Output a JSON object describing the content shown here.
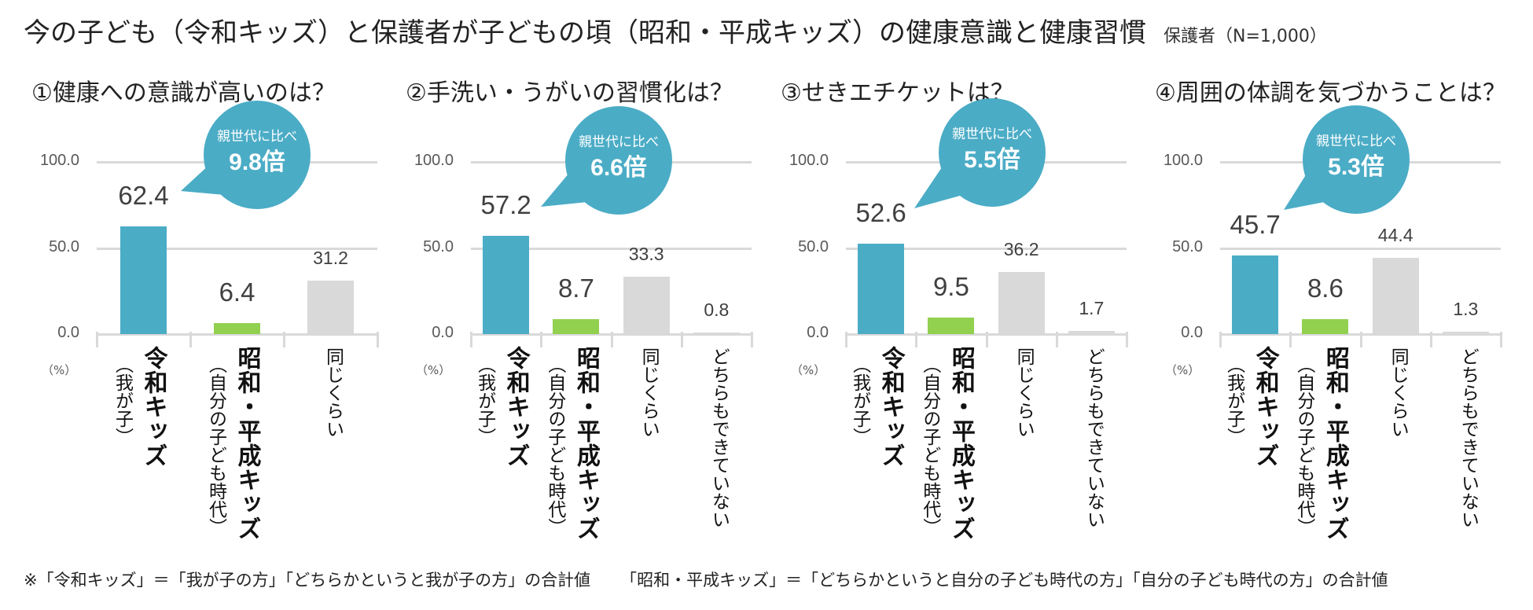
{
  "title": "今の子ども（令和キッズ）と保護者が子どもの頃（昭和・平成キッズ）の健康意識と健康習慣",
  "sample_note": "保護者（N=1,000）",
  "colors": {
    "reiwa": "#4bacc6",
    "showa": "#92d050",
    "other": "#d9d9d9",
    "bubble": "#4bacc6",
    "grid": "#d9d9d9"
  },
  "footnote": {
    "part1": "※「令和キッズ」＝「我が子の方」「どちらかというと我が子の方」の合計値",
    "part2": "「昭和・平成キッズ」＝「どちらかというと自分の子ども時代の方」「自分の子ども時代の方」の合計値"
  },
  "chart_data": [
    {
      "type": "bar",
      "title": "①健康への意識が高いのは？",
      "unit_label": "（%）",
      "ylim": [
        0,
        100
      ],
      "yticks": [
        "100.0",
        "50.0",
        "0.0"
      ],
      "grid": true,
      "categories": [
        {
          "main": "令和キッズ",
          "sub": "（我が子）"
        },
        {
          "main": "昭和・平成キッズ",
          "sub": "（自分の子ども時代）"
        },
        {
          "main": "",
          "sub": "",
          "plain": "同じくらい"
        }
      ],
      "values": [
        62.4,
        6.4,
        31.2
      ],
      "labels": [
        "62.4",
        "6.4",
        "31.2"
      ],
      "callout": {
        "line1": "親世代に比べ",
        "line2": "9.8倍"
      }
    },
    {
      "type": "bar",
      "title": "②手洗い・うがいの習慣化は？",
      "unit_label": "（%）",
      "ylim": [
        0,
        100
      ],
      "yticks": [
        "100.0",
        "50.0",
        "0.0"
      ],
      "grid": true,
      "categories": [
        {
          "main": "令和キッズ",
          "sub": "（我が子）"
        },
        {
          "main": "昭和・平成キッズ",
          "sub": "（自分の子ども時代）"
        },
        {
          "main": "",
          "sub": "",
          "plain": "同じくらい"
        },
        {
          "main": "",
          "sub": "",
          "plain": "どちらもできていない"
        }
      ],
      "values": [
        57.2,
        8.7,
        33.3,
        0.8
      ],
      "labels": [
        "57.2",
        "8.7",
        "33.3",
        "0.8"
      ],
      "callout": {
        "line1": "親世代に比べ",
        "line2": "6.6倍"
      }
    },
    {
      "type": "bar",
      "title": "③せきエチケットは？",
      "unit_label": "（%）",
      "ylim": [
        0,
        100
      ],
      "yticks": [
        "100.0",
        "50.0",
        "0.0"
      ],
      "grid": true,
      "categories": [
        {
          "main": "令和キッズ",
          "sub": "（我が子）"
        },
        {
          "main": "昭和・平成キッズ",
          "sub": "（自分の子ども時代）"
        },
        {
          "main": "",
          "sub": "",
          "plain": "同じくらい"
        },
        {
          "main": "",
          "sub": "",
          "plain": "どちらもできていない"
        }
      ],
      "values": [
        52.6,
        9.5,
        36.2,
        1.7
      ],
      "labels": [
        "52.6",
        "9.5",
        "36.2",
        "1.7"
      ],
      "callout": {
        "line1": "親世代に比べ",
        "line2": "5.5倍"
      }
    },
    {
      "type": "bar",
      "title": "④周囲の体調を気づかうことは？",
      "unit_label": "（%）",
      "ylim": [
        0,
        100
      ],
      "yticks": [
        "100.0",
        "50.0",
        "0.0"
      ],
      "grid": true,
      "categories": [
        {
          "main": "令和キッズ",
          "sub": "（我が子）"
        },
        {
          "main": "昭和・平成キッズ",
          "sub": "（自分の子ども時代）"
        },
        {
          "main": "",
          "sub": "",
          "plain": "同じくらい"
        },
        {
          "main": "",
          "sub": "",
          "plain": "どちらもできていない"
        }
      ],
      "values": [
        45.7,
        8.6,
        44.4,
        1.3
      ],
      "labels": [
        "45.7",
        "8.6",
        "44.4",
        "1.3"
      ],
      "callout": {
        "line1": "親世代に比べ",
        "line2": "5.3倍"
      }
    }
  ]
}
